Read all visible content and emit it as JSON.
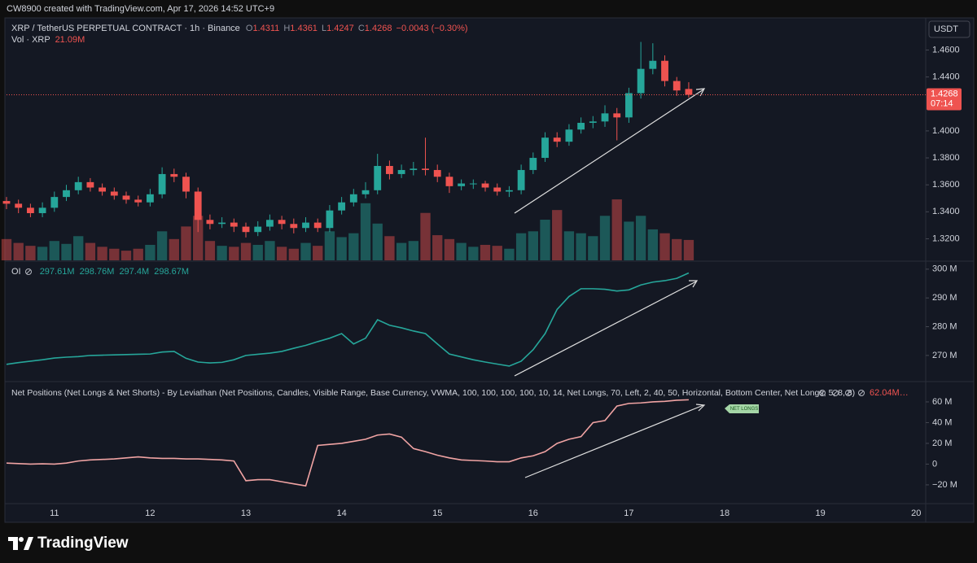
{
  "header": {
    "text": "CW8900 created with TradingView.com, Apr 17, 2026 14:52 UTC+9"
  },
  "footer": {
    "brand": "TradingView"
  },
  "chart_data": [
    {
      "type": "candlestick",
      "title": "XRP / TetherUS PERPETUAL CONTRACT · 1h · Binance",
      "legend": [
        {
          "label": "O",
          "value": 1.4311
        },
        {
          "label": "H",
          "value": 1.4361
        },
        {
          "label": "L",
          "value": 1.4247
        },
        {
          "label": "C",
          "value": 1.4268
        }
      ],
      "change": "−0.0043 (−0.30%)",
      "currency": "USDT",
      "last_price": {
        "value": 1.4268,
        "countdown": "07:14"
      },
      "up_color": "#26a69a",
      "down_color": "#ef5350",
      "x": [
        10.5,
        10.625,
        10.75,
        10.875,
        11,
        11.125,
        11.25,
        11.375,
        11.5,
        11.625,
        11.75,
        11.875,
        12,
        12.125,
        12.25,
        12.375,
        12.5,
        12.625,
        12.75,
        12.875,
        13,
        13.125,
        13.25,
        13.375,
        13.5,
        13.625,
        13.75,
        13.875,
        14,
        14.125,
        14.25,
        14.375,
        14.5,
        14.625,
        14.75,
        14.875,
        15,
        15.125,
        15.25,
        15.375,
        15.5,
        15.625,
        15.75,
        15.875,
        16,
        16.125,
        16.25,
        16.375,
        16.5,
        16.625,
        16.75,
        16.875,
        17,
        17.125,
        17.25,
        17.375,
        17.5,
        17.625
      ],
      "xlim": [
        10.5,
        20.1
      ],
      "xticks": [
        11,
        12,
        13,
        14,
        15,
        16,
        17,
        18,
        19,
        20
      ],
      "open": [
        1.348,
        1.346,
        1.343,
        1.339,
        1.343,
        1.351,
        1.356,
        1.362,
        1.358,
        1.355,
        1.352,
        1.349,
        1.347,
        1.353,
        1.368,
        1.366,
        1.355,
        1.334,
        1.331,
        1.332,
        1.329,
        1.325,
        1.329,
        1.334,
        1.331,
        1.328,
        1.332,
        1.328,
        1.341,
        1.347,
        1.353,
        1.356,
        1.374,
        1.368,
        1.371,
        1.372,
        1.371,
        1.366,
        1.359,
        1.361,
        1.361,
        1.358,
        1.355,
        1.356,
        1.371,
        1.38,
        1.395,
        1.392,
        1.401,
        1.406,
        1.407,
        1.413,
        1.41,
        1.428,
        1.446,
        1.452,
        1.437,
        1.4311
      ],
      "high": [
        1.351,
        1.349,
        1.346,
        1.347,
        1.355,
        1.36,
        1.366,
        1.365,
        1.361,
        1.358,
        1.355,
        1.352,
        1.357,
        1.373,
        1.372,
        1.369,
        1.358,
        1.338,
        1.336,
        1.335,
        1.332,
        1.333,
        1.338,
        1.337,
        1.335,
        1.336,
        1.335,
        1.345,
        1.351,
        1.357,
        1.362,
        1.383,
        1.378,
        1.375,
        1.377,
        1.395,
        1.375,
        1.369,
        1.364,
        1.364,
        1.363,
        1.361,
        1.359,
        1.375,
        1.384,
        1.399,
        1.399,
        1.405,
        1.41,
        1.411,
        1.419,
        1.417,
        1.432,
        1.466,
        1.465,
        1.456,
        1.44,
        1.4361
      ],
      "low": [
        1.342,
        1.339,
        1.336,
        1.336,
        1.34,
        1.348,
        1.353,
        1.355,
        1.352,
        1.349,
        1.346,
        1.344,
        1.344,
        1.35,
        1.362,
        1.35,
        1.325,
        1.327,
        1.328,
        1.325,
        1.321,
        1.322,
        1.326,
        1.327,
        1.324,
        1.325,
        1.325,
        1.325,
        1.338,
        1.344,
        1.35,
        1.353,
        1.364,
        1.365,
        1.367,
        1.367,
        1.362,
        1.354,
        1.356,
        1.357,
        1.355,
        1.352,
        1.351,
        1.353,
        1.368,
        1.377,
        1.388,
        1.389,
        1.398,
        1.402,
        1.403,
        1.393,
        1.406,
        1.424,
        1.442,
        1.433,
        1.426,
        1.4247
      ],
      "close": [
        1.346,
        1.343,
        1.339,
        1.343,
        1.351,
        1.356,
        1.362,
        1.358,
        1.355,
        1.352,
        1.349,
        1.347,
        1.353,
        1.368,
        1.366,
        1.355,
        1.334,
        1.331,
        1.332,
        1.329,
        1.325,
        1.329,
        1.334,
        1.331,
        1.328,
        1.332,
        1.328,
        1.341,
        1.347,
        1.353,
        1.356,
        1.374,
        1.368,
        1.371,
        1.372,
        1.371,
        1.366,
        1.359,
        1.361,
        1.361,
        1.358,
        1.355,
        1.356,
        1.371,
        1.38,
        1.395,
        1.392,
        1.401,
        1.406,
        1.407,
        1.413,
        1.41,
        1.428,
        1.446,
        1.452,
        1.437,
        1.43,
        1.4268
      ],
      "ylim": [
        1.304,
        1.482
      ],
      "yticks": [
        {
          "value": 1.32,
          "label": "1.3200"
        },
        {
          "value": 1.34,
          "label": "1.3400"
        },
        {
          "value": 1.36,
          "label": "1.3600"
        },
        {
          "value": 1.38,
          "label": "1.3800"
        },
        {
          "value": 1.4,
          "label": "1.4000"
        },
        {
          "value": 1.44,
          "label": "1.4400"
        },
        {
          "value": 1.46,
          "label": "1.4600"
        }
      ],
      "volume": {
        "name": "Vol · XRP",
        "last_label": "21.09M",
        "ylim": [
          0,
          248
        ],
        "values": [
          22,
          18,
          15,
          14,
          20,
          17,
          25,
          18,
          14,
          12,
          10,
          12,
          16,
          30,
          22,
          35,
          46,
          20,
          15,
          14,
          18,
          16,
          20,
          14,
          12,
          18,
          15,
          30,
          24,
          28,
          59,
          38,
          25,
          18,
          20,
          49,
          26,
          22,
          18,
          14,
          16,
          15,
          12,
          28,
          30,
          42,
          52,
          30,
          28,
          25,
          46,
          63,
          40,
          46,
          32,
          28,
          22,
          21.09
        ]
      }
    },
    {
      "type": "line",
      "name": "OI",
      "legend": [
        "297.61M",
        "298.76M",
        "297.4M",
        "298.67M"
      ],
      "color": "#26a69a",
      "values": [
        266.9,
        267.5,
        268,
        268.5,
        269.1,
        269.4,
        269.6,
        270,
        270.1,
        270.2,
        270.3,
        270.4,
        270.5,
        271.2,
        271.4,
        269,
        267.7,
        267.4,
        267.6,
        268.5,
        270,
        270.4,
        270.8,
        271.4,
        272.5,
        273.5,
        274.8,
        276,
        277.6,
        274,
        276,
        282.4,
        280.5,
        279.6,
        278.5,
        277.6,
        274,
        270.5,
        269.5,
        268.5,
        267.7,
        267,
        266.3,
        268,
        272,
        277.6,
        286,
        290.5,
        293.2,
        293.2,
        293,
        292.4,
        292.8,
        294.5,
        295.5,
        296,
        296.8,
        298.67
      ],
      "ylim": [
        261.2,
        302.5
      ],
      "yticks": [
        {
          "value": 270,
          "label": "270 M"
        },
        {
          "value": 280,
          "label": "280 M"
        },
        {
          "value": 290,
          "label": "290 M"
        },
        {
          "value": 300,
          "label": "300 M"
        }
      ]
    },
    {
      "type": "line",
      "name": "Net Positions (Net Longs & Net Shorts) - By Leviathan (Net Positions, Candles, Visible Range, Base Currency, VWMA, 100, 100, 100, 100, 10, 14, Net Longs, 70, Left, 2, 40, 50, Horizontal, Bottom Center, Net Longs, 5, 8, 8)",
      "legend_value": "62.04M…",
      "tag": "NET LONGS",
      "color": "#f0a3a3",
      "values": [
        1,
        0.5,
        0,
        0.3,
        0,
        1,
        3,
        4,
        4.5,
        5,
        6,
        7,
        6,
        5.5,
        5.5,
        5,
        5,
        4.5,
        4,
        3,
        -16,
        -15,
        -15,
        -17,
        -19,
        -21,
        18,
        19,
        20,
        22,
        24,
        28,
        29,
        26,
        15,
        12,
        8.6,
        6,
        4,
        3.5,
        3,
        2.3,
        2.3,
        6,
        8,
        12,
        20,
        24,
        26.5,
        40,
        42,
        56,
        58.5,
        59,
        60,
        60.5,
        61.6,
        62.04
      ],
      "ylim": [
        -37.3,
        78.8
      ],
      "yticks": [
        {
          "value": -20,
          "label": "−20 M"
        },
        0,
        {
          "value": 20,
          "label": "20 M"
        },
        {
          "value": 40,
          "label": "40 M"
        },
        {
          "value": 60,
          "label": "60 M"
        }
      ]
    }
  ]
}
